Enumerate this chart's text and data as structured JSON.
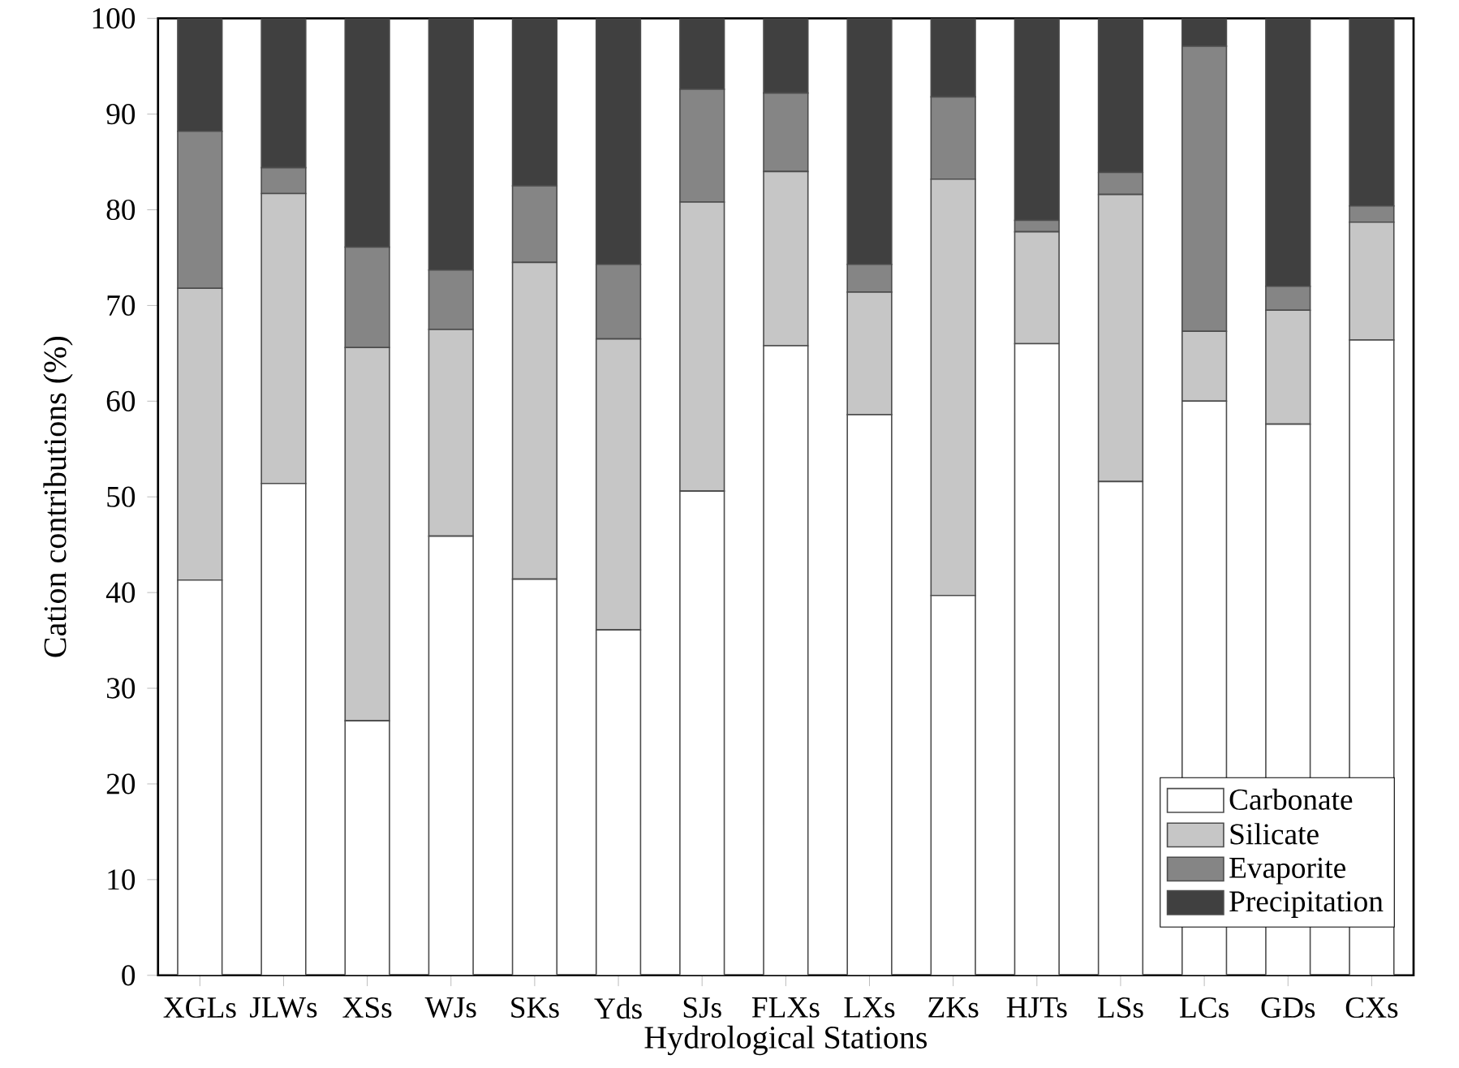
{
  "chart_data": {
    "type": "bar",
    "stacked": true,
    "xlabel": "Hydrological Stations",
    "ylabel": "Cation contributions (%)",
    "categories": [
      "XGLs",
      "JLWs",
      "XSs",
      "WJs",
      "SKs",
      "Yds",
      "SJs",
      "FLXs",
      "LXs",
      "ZKs",
      "HJTs",
      "LSs",
      "LCs",
      "GDs",
      "CXs"
    ],
    "series": [
      {
        "name": "Carbonate",
        "color": "#ffffff",
        "values": [
          41.3,
          51.4,
          26.6,
          45.9,
          41.4,
          36.1,
          50.6,
          65.8,
          58.6,
          39.7,
          66.0,
          51.6,
          60.0,
          57.6,
          66.4
        ]
      },
      {
        "name": "Silicate",
        "color": "#c6c6c6",
        "values": [
          30.5,
          30.3,
          39.0,
          21.6,
          33.1,
          30.4,
          30.2,
          18.2,
          12.8,
          43.5,
          11.7,
          30.0,
          7.3,
          11.9,
          12.3
        ]
      },
      {
        "name": "Evaporite",
        "color": "#858585",
        "values": [
          16.4,
          2.7,
          10.5,
          6.2,
          8.0,
          7.8,
          11.8,
          8.2,
          2.9,
          8.6,
          1.2,
          2.3,
          29.8,
          2.5,
          1.7
        ]
      },
      {
        "name": "Precipitation",
        "color": "#404040",
        "values": [
          11.8,
          15.6,
          23.9,
          26.3,
          17.5,
          25.7,
          7.4,
          7.8,
          25.7,
          8.2,
          21.1,
          16.1,
          2.9,
          28.0,
          19.6
        ]
      }
    ],
    "ylim": [
      0,
      100
    ],
    "yticks": [
      0,
      10,
      20,
      30,
      40,
      50,
      60,
      70,
      80,
      90,
      100
    ],
    "legend": "bottom right"
  }
}
